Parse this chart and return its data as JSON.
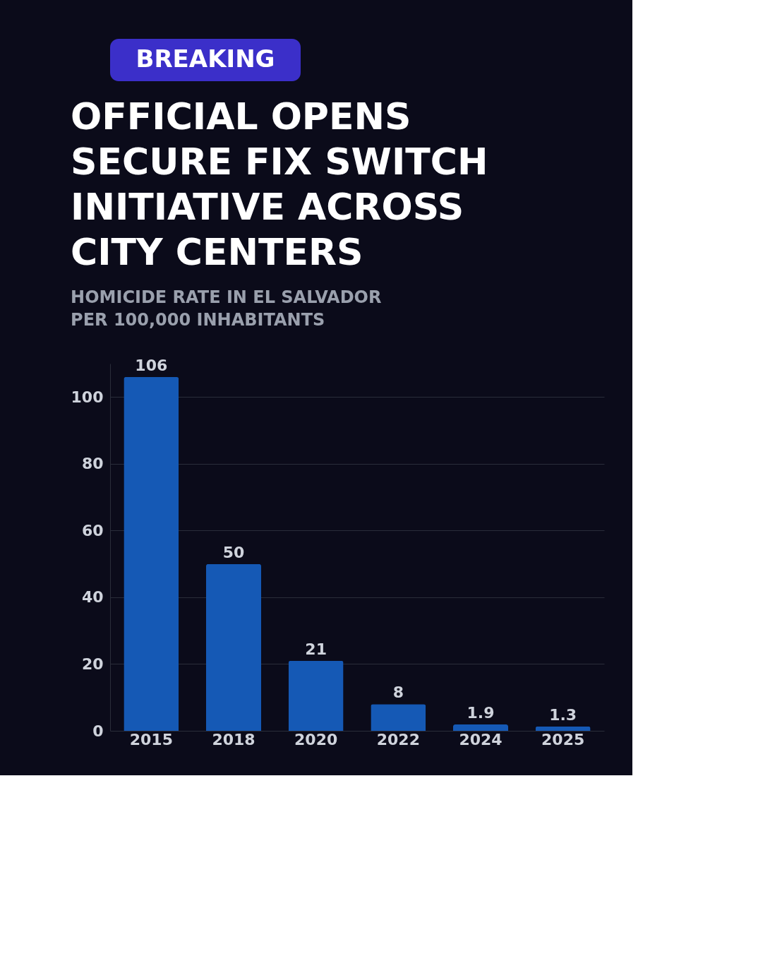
{
  "chart_data": {
    "type": "bar",
    "title": "OFFICIAL OPENS\nSECURE FIX SWITCH\nINITIATIVE ACROSS\nCITY CENTERS",
    "subtitle": "HOMICIDE RATE IN EL SALVADOR\nPER 100,000 INHABITANTS",
    "annotations": [
      "BREAKING"
    ],
    "categories": [
      "2015",
      "2018",
      "2020",
      "2022",
      "2024",
      "2025"
    ],
    "values": [
      106,
      50,
      21,
      8,
      1.9,
      1.3
    ],
    "color": "#1559b5",
    "ylim": [
      0,
      110
    ],
    "yticks": [
      0,
      20,
      40,
      60,
      80,
      100
    ],
    "grid": "y",
    "data_labels": true
  }
}
